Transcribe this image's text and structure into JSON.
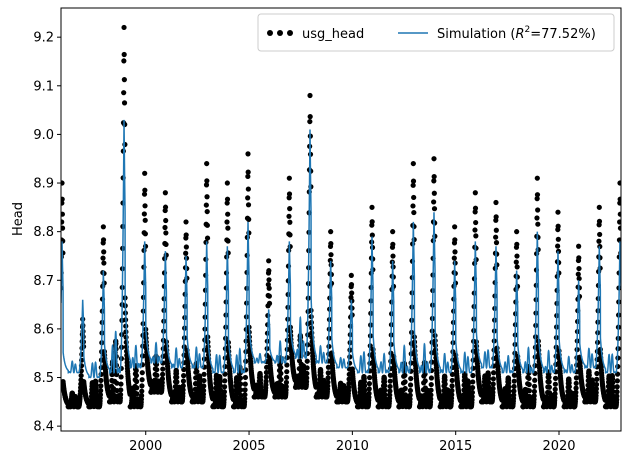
{
  "chart_data": {
    "type": "line",
    "title": "",
    "xlabel": "",
    "ylabel": "Head",
    "xlim": [
      1995.9,
      2023.0
    ],
    "ylim": [
      8.39,
      9.26
    ],
    "xticks": [
      2000,
      2005,
      2010,
      2015,
      2020
    ],
    "xtick_labels": [
      "2000",
      "2005",
      "2010",
      "2015",
      "2020"
    ],
    "yticks": [
      8.4,
      8.5,
      8.6,
      8.7,
      8.8,
      8.9,
      9.0,
      9.1,
      9.2
    ],
    "ytick_labels": [
      "8.4",
      "8.5",
      "8.6",
      "8.7",
      "8.8",
      "8.9",
      "9.0",
      "9.1",
      "9.2"
    ],
    "grid": false,
    "legend": {
      "position": "top-right",
      "columns": 2,
      "entries": [
        {
          "name": "usg_head",
          "marker": "dot",
          "color": "#000000"
        },
        {
          "name": "Simulation (R²=77.52%)",
          "name_prefix": "Simulation (",
          "name_symbol": "R",
          "name_superscript": "2",
          "name_suffix": "=77.52%)",
          "marker": "line",
          "color": "#1f77b4"
        }
      ]
    },
    "series": [
      {
        "name": "usg_head",
        "style": "scatter",
        "color": "#000000",
        "annual_peaks": [
          {
            "year": 1996,
            "peak": 8.62,
            "low": 8.44
          },
          {
            "year": 1997,
            "peak": 8.81,
            "low": 8.44
          },
          {
            "year": 1998,
            "peak": 9.22,
            "low": 8.45
          },
          {
            "year": 1999,
            "peak": 8.92,
            "low": 8.44
          },
          {
            "year": 2000,
            "peak": 8.88,
            "low": 8.47
          },
          {
            "year": 2001,
            "peak": 8.82,
            "low": 8.45
          },
          {
            "year": 2002,
            "peak": 8.94,
            "low": 8.45
          },
          {
            "year": 2003,
            "peak": 8.9,
            "low": 8.44
          },
          {
            "year": 2004,
            "peak": 8.96,
            "low": 8.44
          },
          {
            "year": 2005,
            "peak": 8.74,
            "low": 8.46
          },
          {
            "year": 2006,
            "peak": 8.91,
            "low": 8.46
          },
          {
            "year": 2007,
            "peak": 9.08,
            "low": 8.48
          },
          {
            "year": 2008,
            "peak": 8.8,
            "low": 8.46
          },
          {
            "year": 2009,
            "peak": 8.71,
            "low": 8.45
          },
          {
            "year": 2010,
            "peak": 8.85,
            "low": 8.44
          },
          {
            "year": 2011,
            "peak": 8.8,
            "low": 8.44
          },
          {
            "year": 2012,
            "peak": 8.94,
            "low": 8.44
          },
          {
            "year": 2013,
            "peak": 8.95,
            "low": 8.44
          },
          {
            "year": 2014,
            "peak": 8.81,
            "low": 8.44
          },
          {
            "year": 2015,
            "peak": 8.88,
            "low": 8.44
          },
          {
            "year": 2016,
            "peak": 8.86,
            "low": 8.45
          },
          {
            "year": 2017,
            "peak": 8.8,
            "low": 8.44
          },
          {
            "year": 2018,
            "peak": 8.91,
            "low": 8.44
          },
          {
            "year": 2019,
            "peak": 8.84,
            "low": 8.44
          },
          {
            "year": 2020,
            "peak": 8.77,
            "low": 8.44
          },
          {
            "year": 2021,
            "peak": 8.85,
            "low": 8.45
          },
          {
            "year": 2022,
            "peak": 8.9,
            "low": 8.44
          }
        ]
      },
      {
        "name": "Simulation (R²=77.52%)",
        "style": "line",
        "color": "#1f77b4",
        "annual_peaks": [
          {
            "year": 1996,
            "peak": 8.66,
            "low": 8.51
          },
          {
            "year": 1997,
            "peak": 8.72,
            "low": 8.5
          },
          {
            "year": 1998,
            "peak": 9.03,
            "low": 8.51
          },
          {
            "year": 1999,
            "peak": 8.78,
            "low": 8.52
          },
          {
            "year": 2000,
            "peak": 8.76,
            "low": 8.53
          },
          {
            "year": 2001,
            "peak": 8.75,
            "low": 8.52
          },
          {
            "year": 2002,
            "peak": 8.78,
            "low": 8.52
          },
          {
            "year": 2003,
            "peak": 8.77,
            "low": 8.51
          },
          {
            "year": 2004,
            "peak": 8.82,
            "low": 8.51
          },
          {
            "year": 2005,
            "peak": 8.64,
            "low": 8.53
          },
          {
            "year": 2006,
            "peak": 8.78,
            "low": 8.53
          },
          {
            "year": 2007,
            "peak": 9.01,
            "low": 8.54
          },
          {
            "year": 2008,
            "peak": 8.74,
            "low": 8.53
          },
          {
            "year": 2009,
            "peak": 8.66,
            "low": 8.52
          },
          {
            "year": 2010,
            "peak": 8.79,
            "low": 8.51
          },
          {
            "year": 2011,
            "peak": 8.74,
            "low": 8.51
          },
          {
            "year": 2012,
            "peak": 8.82,
            "low": 8.51
          },
          {
            "year": 2013,
            "peak": 8.84,
            "low": 8.51
          },
          {
            "year": 2014,
            "peak": 8.74,
            "low": 8.51
          },
          {
            "year": 2015,
            "peak": 8.78,
            "low": 8.51
          },
          {
            "year": 2016,
            "peak": 8.77,
            "low": 8.52
          },
          {
            "year": 2017,
            "peak": 8.72,
            "low": 8.51
          },
          {
            "year": 2018,
            "peak": 8.8,
            "low": 8.51
          },
          {
            "year": 2019,
            "peak": 8.76,
            "low": 8.51
          },
          {
            "year": 2020,
            "peak": 8.7,
            "low": 8.51
          },
          {
            "year": 2021,
            "peak": 8.77,
            "low": 8.52
          },
          {
            "year": 2022,
            "peak": 8.78,
            "low": 8.51
          }
        ]
      }
    ]
  }
}
